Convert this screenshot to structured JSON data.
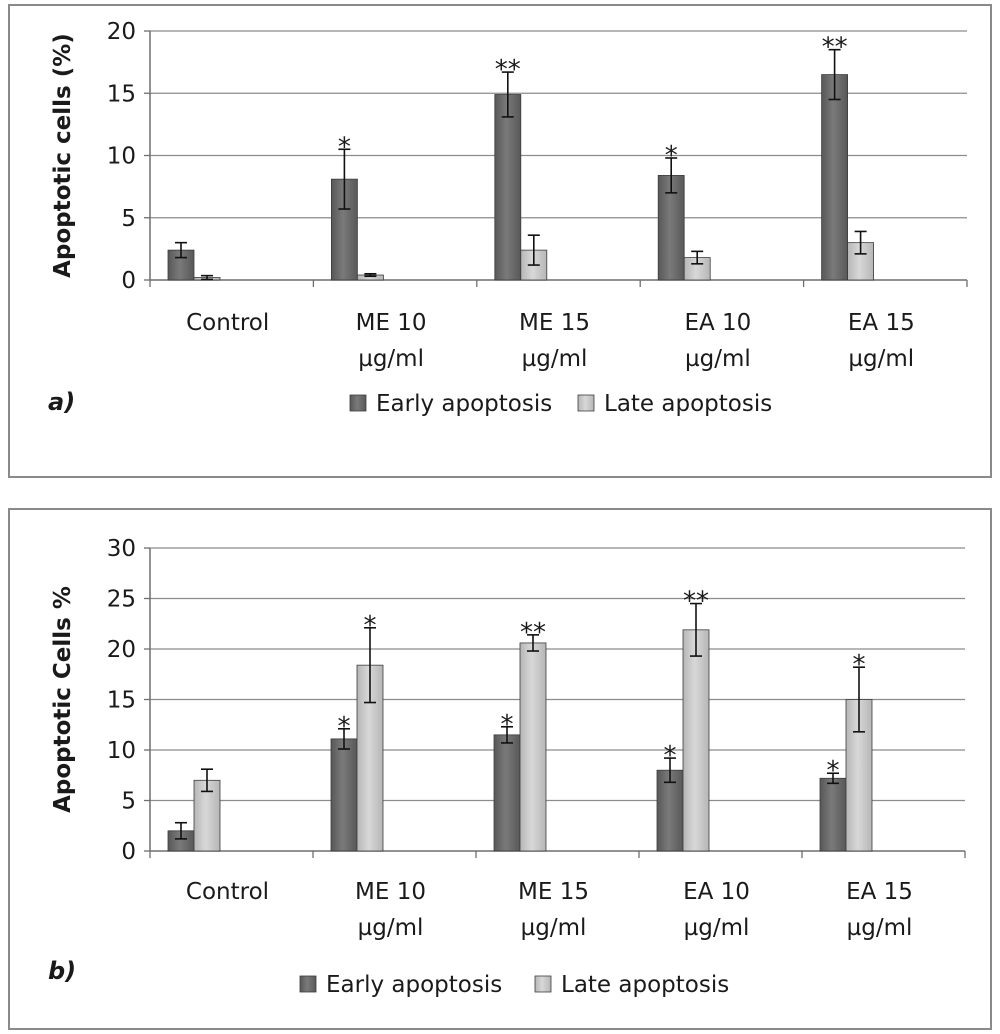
{
  "chart_data": [
    {
      "type": "bar",
      "panel_label": "a)",
      "ylabel": "Apoptotic cells (%)",
      "ylim": [
        0,
        20
      ],
      "yticks": [
        0,
        5,
        10,
        15,
        20
      ],
      "grid": true,
      "legend_position": "bottom",
      "categories": [
        [
          "Control"
        ],
        [
          "ME 10",
          "µg/ml"
        ],
        [
          "ME 15",
          "µg/ml"
        ],
        [
          "EA 10",
          "µg/ml"
        ],
        [
          "EA 15",
          "µg/ml"
        ]
      ],
      "series": [
        {
          "name": "Early apoptosis",
          "color": "#585858",
          "values": [
            2.4,
            8.1,
            14.9,
            8.4,
            16.5
          ],
          "errors": [
            0.6,
            2.4,
            1.8,
            1.4,
            2.0
          ],
          "significance": [
            "",
            "*",
            "**",
            "*",
            "**"
          ]
        },
        {
          "name": "Late apoptosis",
          "color": "#b6b6b6",
          "values": [
            0.2,
            0.4,
            2.4,
            1.8,
            3.0
          ],
          "errors": [
            0.15,
            0.1,
            1.2,
            0.5,
            0.9
          ],
          "significance": [
            "",
            "",
            "",
            "",
            ""
          ]
        }
      ]
    },
    {
      "type": "bar",
      "panel_label": "b)",
      "ylabel": "Apoptotic Cells %",
      "ylim": [
        0,
        30
      ],
      "yticks": [
        0,
        5,
        10,
        15,
        20,
        25,
        30
      ],
      "grid": true,
      "legend_position": "bottom",
      "categories": [
        [
          "Control"
        ],
        [
          "ME 10",
          "µg/ml"
        ],
        [
          "ME 15",
          "µg/ml"
        ],
        [
          "EA 10",
          "µg/ml"
        ],
        [
          "EA 15",
          "µg/ml"
        ]
      ],
      "series": [
        {
          "name": "Early apoptosis",
          "color": "#585858",
          "values": [
            2.0,
            11.1,
            11.5,
            8.0,
            7.2
          ],
          "errors": [
            0.8,
            1.0,
            0.8,
            1.2,
            0.5
          ],
          "significance": [
            "",
            "*",
            "*",
            "*",
            "*"
          ]
        },
        {
          "name": "Late apoptosis",
          "color": "#b6b6b6",
          "values": [
            7.0,
            18.4,
            20.6,
            21.9,
            15.0
          ],
          "errors": [
            1.1,
            3.7,
            0.8,
            2.6,
            3.2
          ],
          "significance": [
            "",
            "*",
            "**",
            "**",
            "*"
          ]
        }
      ]
    }
  ]
}
